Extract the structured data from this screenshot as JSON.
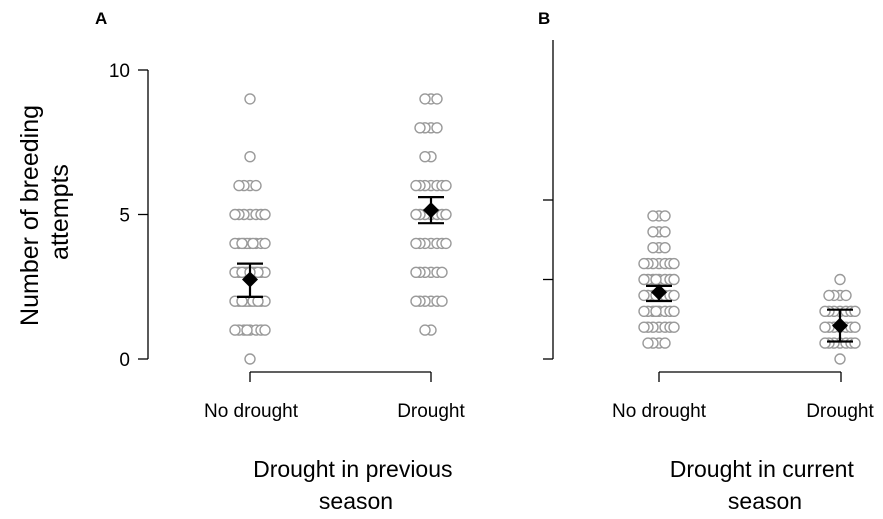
{
  "y_axis_title_line1": "Number of breeding",
  "y_axis_title_line2": "attempts",
  "chart_data": [
    {
      "type": "scatter",
      "panel": "A",
      "xlabel_line1": "Drought in previous",
      "xlabel_line2": "season",
      "categories": [
        "No drought",
        "Drought"
      ],
      "ylim": [
        0,
        10
      ],
      "yticks": [
        0,
        5,
        10
      ],
      "grid": false,
      "points": [
        [
          9,
          7,
          6,
          6,
          6,
          6,
          5,
          5,
          5,
          5,
          5,
          5,
          5,
          4,
          4,
          4,
          4,
          4,
          4,
          4,
          4,
          4,
          4,
          3,
          3,
          3,
          3,
          3,
          3,
          3,
          3,
          3,
          3,
          3,
          3,
          2,
          2,
          2,
          2,
          2,
          2,
          2,
          2,
          2,
          2,
          2,
          1,
          1,
          1,
          1,
          1,
          1,
          1,
          1,
          0
        ],
        [
          9,
          9,
          9,
          8,
          8,
          8,
          8,
          7,
          7,
          6,
          6,
          6,
          6,
          6,
          6,
          6,
          5,
          5,
          5,
          5,
          5,
          5,
          5,
          4,
          4,
          4,
          4,
          4,
          4,
          4,
          3,
          3,
          3,
          3,
          3,
          3,
          2,
          2,
          2,
          2,
          2,
          2,
          1,
          1
        ]
      ],
      "means": [
        2.75,
        5.15
      ],
      "error_low": [
        2.15,
        4.7
      ],
      "error_high": [
        3.3,
        5.6
      ]
    },
    {
      "type": "scatter",
      "panel": "B",
      "xlabel_line1": "Drought in current",
      "xlabel_line2": "season",
      "categories": [
        "No drought",
        "Drought"
      ],
      "ylim": [
        0,
        10
      ],
      "yticks": [
        0,
        5,
        10
      ],
      "grid": false,
      "points": [
        [
          9,
          9,
          9,
          8,
          8,
          8,
          7,
          7,
          7,
          6,
          6,
          6,
          6,
          6,
          6,
          6,
          5,
          5,
          5,
          5,
          5,
          5,
          5,
          5,
          4,
          4,
          4,
          4,
          4,
          4,
          4,
          4,
          3,
          3,
          3,
          3,
          3,
          3,
          3,
          3,
          2,
          2,
          2,
          2,
          2,
          2,
          2,
          1,
          1,
          1,
          1
        ],
        [
          5,
          4,
          4,
          4,
          4,
          3,
          3,
          3,
          3,
          3,
          3,
          3,
          2,
          2,
          2,
          2,
          2,
          2,
          2,
          1,
          1,
          1,
          1,
          1,
          1,
          1,
          0
        ]
      ],
      "means": [
        4.2,
        2.1
      ],
      "error_low": [
        3.65,
        1.1
      ],
      "error_high": [
        4.6,
        3.1
      ]
    }
  ]
}
